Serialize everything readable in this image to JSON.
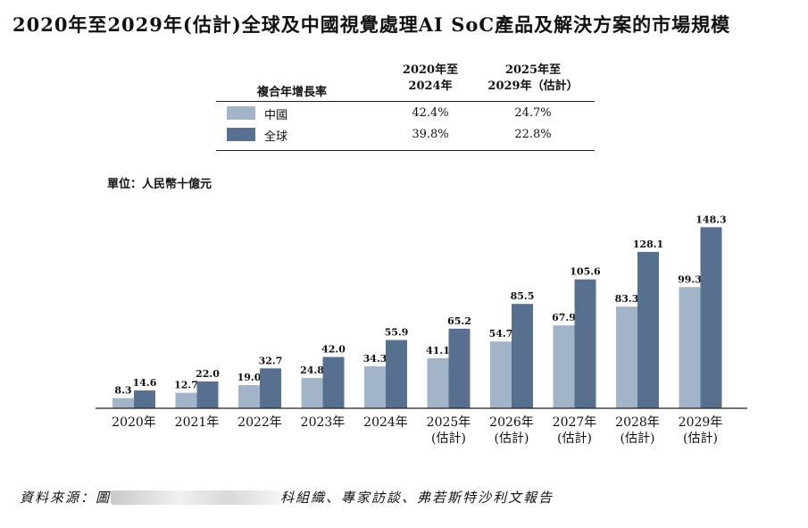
{
  "colors": {
    "china": "#a2b4c8",
    "global": "#58708f"
  },
  "title": "2020年至2029年(估計)全球及中國視覺處理AI SoC產品及解決方案的市場規模",
  "cagr_table": {
    "header_label": "複合年增長率",
    "col1": [
      "2020年至",
      "2024年"
    ],
    "col2": [
      "2025年至",
      "2029年（估計）"
    ],
    "rows": [
      {
        "name": "中國",
        "v1": "42.4%",
        "v2": "24.7%"
      },
      {
        "name": "全球",
        "v1": "39.8%",
        "v2": "22.8%"
      }
    ]
  },
  "unit_label": "單位：人民幣十億元",
  "chart_data": {
    "type": "bar",
    "categories": [
      [
        "2020年"
      ],
      [
        "2021年"
      ],
      [
        "2022年"
      ],
      [
        "2023年"
      ],
      [
        "2024年"
      ],
      [
        "2025年",
        "(估計)"
      ],
      [
        "2026年",
        "(估計)"
      ],
      [
        "2027年",
        "(估計)"
      ],
      [
        "2028年",
        "(估計)"
      ],
      [
        "2029年",
        "(估計)"
      ]
    ],
    "series": [
      {
        "name": "中國",
        "values": [
          8.3,
          12.7,
          19.0,
          24.8,
          34.3,
          41.1,
          54.7,
          67.9,
          83.3,
          99.3
        ]
      },
      {
        "name": "全球",
        "values": [
          14.6,
          22.0,
          32.7,
          42.0,
          55.9,
          65.2,
          85.5,
          105.6,
          128.1,
          148.3
        ]
      }
    ],
    "ylim": [
      0,
      150
    ]
  },
  "source": {
    "prefix": "資料來源：圖",
    "suffix": "科組織、專家訪談、弗若斯特沙利文報告"
  }
}
